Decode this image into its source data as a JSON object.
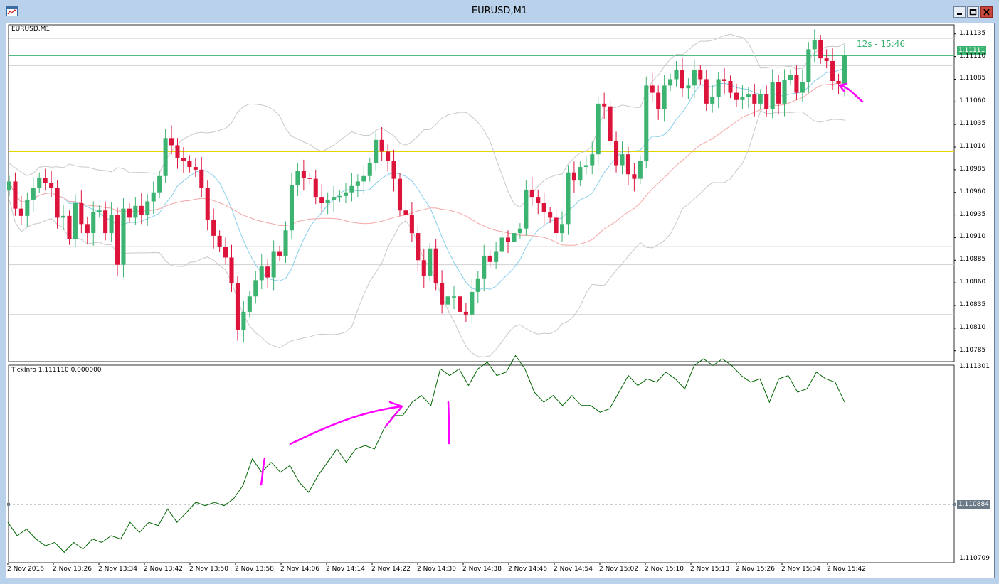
{
  "window": {
    "title": "EURUSD,M1",
    "icon": "chart-window-icon",
    "buttons": [
      "minimize-icon",
      "restore-icon",
      "close-icon"
    ]
  },
  "colors": {
    "bull": "#3cb371",
    "bear": "#dc143c",
    "ma_fast": "#87ceeb",
    "ma_slow": "#f4a6a6",
    "bands": "#c8c8c8",
    "level": "#e6d400",
    "ask_line": "#3cb371",
    "tick_line": "#006400",
    "annotation": "#ff00ff"
  },
  "main_pane": {
    "label": "EURUSD,M1",
    "timer": "12s - 15:46",
    "current_price": "1.11111",
    "price_labels": [
      "1.11135",
      "1.11110",
      "1.11085",
      "1.11060",
      "1.11035",
      "1.11010",
      "1.10985",
      "1.10960",
      "1.10935",
      "1.10910",
      "1.10885",
      "1.10860",
      "1.10835",
      "1.10810",
      "1.10785"
    ]
  },
  "sub_pane": {
    "label": "TickInfo 1.111110 0.000000",
    "price_labels": [
      "1.111301",
      "1.110884",
      "1.110709"
    ]
  },
  "time_labels": [
    "2 Nov 2016",
    "2 Nov 13:26",
    "2 Nov 13:34",
    "2 Nov 13:42",
    "2 Nov 13:50",
    "2 Nov 13:58",
    "2 Nov 14:06",
    "2 Nov 14:14",
    "2 Nov 14:22",
    "2 Nov 14:30",
    "2 Nov 14:38",
    "2 Nov 14:46",
    "2 Nov 14:54",
    "2 Nov 15:02",
    "2 Nov 15:10",
    "2 Nov 15:18",
    "2 Nov 15:26",
    "2 Nov 15:34",
    "2 Nov 15:42"
  ],
  "chart_data": [
    {
      "type": "candlestick",
      "title": "EURUSD,M1",
      "ylim": [
        1.10773,
        1.11145
      ],
      "levels": [
        1.11005,
        1.11111
      ],
      "closes": [
        1.10972,
        1.10942,
        1.10934,
        1.10952,
        1.10965,
        1.10976,
        1.1097,
        1.10965,
        1.10932,
        1.10934,
        1.10908,
        1.10948,
        1.10925,
        1.10915,
        1.10938,
        1.1094,
        1.10915,
        1.10935,
        1.1088,
        1.10942,
        1.10932,
        1.10945,
        1.10935,
        1.1095,
        1.1096,
        1.10978,
        1.1102,
        1.11012,
        1.10998,
        1.10995,
        1.10988,
        1.10985,
        1.10965,
        1.1093,
        1.10912,
        1.109,
        1.10888,
        1.1086,
        1.10808,
        1.10828,
        1.10845,
        1.10863,
        1.10878,
        1.10866,
        1.10895,
        1.1089,
        1.10918,
        1.10968,
        1.10984,
        1.10976,
        1.10975,
        1.10955,
        1.10948,
        1.10952,
        1.10955,
        1.10956,
        1.1096,
        1.10967,
        1.10972,
        1.10978,
        1.10992,
        1.11018,
        1.11005,
        1.10995,
        1.10975,
        1.1094,
        1.10935,
        1.10915,
        1.10885,
        1.10868,
        1.10898,
        1.1086,
        1.10836,
        1.10845,
        1.10845,
        1.10828,
        1.10825,
        1.1085,
        1.10865,
        1.1089,
        1.10883,
        1.10895,
        1.1091,
        1.10905,
        1.10915,
        1.1092,
        1.10963,
        1.10955,
        1.10948,
        1.10938,
        1.10932,
        1.10915,
        1.10925,
        1.10982,
        1.10973,
        1.10988,
        1.1099,
        1.11002,
        1.11058,
        1.11055,
        1.11017,
        1.1099,
        1.11002,
        1.1098,
        1.10975,
        1.10995,
        1.11078,
        1.1107,
        1.11052,
        1.11078,
        1.11085,
        1.11095,
        1.11075,
        1.11078,
        1.11095,
        1.11085,
        1.11058,
        1.11065,
        1.11085,
        1.11083,
        1.1107,
        1.11062,
        1.11065,
        1.11068,
        1.11058,
        1.11068,
        1.11052,
        1.11082,
        1.11058,
        1.11084,
        1.1109,
        1.1107,
        1.11082,
        1.11118,
        1.11128,
        1.11108,
        1.11105,
        1.11083,
        1.1108,
        1.11111
      ]
    },
    {
      "type": "line",
      "title": "TickInfo 1.111110 0.000000",
      "ylim": [
        1.110709,
        1.111301
      ],
      "levels": [
        1.110884
      ],
      "values": [
        1.11083,
        1.11079,
        1.11081,
        1.11078,
        1.11076,
        1.11077,
        1.11074,
        1.11077,
        1.11075,
        1.11078,
        1.11077,
        1.11079,
        1.11078,
        1.11083,
        1.1108,
        1.11083,
        1.11082,
        1.11087,
        1.11083,
        1.11086,
        1.11089,
        1.11088,
        1.11089,
        1.11088,
        1.1109,
        1.11094,
        1.11102,
        1.11098,
        1.11101,
        1.11098,
        1.111,
        1.11095,
        1.11092,
        1.11097,
        1.11101,
        1.11105,
        1.11101,
        1.11105,
        1.11106,
        1.11105,
        1.11111,
        1.11115,
        1.11115,
        1.11119,
        1.11121,
        1.11118,
        1.11129,
        1.11127,
        1.11129,
        1.11124,
        1.11129,
        1.11131,
        1.11127,
        1.11128,
        1.11133,
        1.11129,
        1.11122,
        1.11119,
        1.11121,
        1.11118,
        1.11121,
        1.11118,
        1.11118,
        1.11116,
        1.11117,
        1.11122,
        1.11127,
        1.11124,
        1.11126,
        1.11125,
        1.11128,
        1.11126,
        1.11123,
        1.1113,
        1.11132,
        1.1113,
        1.11132,
        1.1113,
        1.11127,
        1.11125,
        1.11126,
        1.11119,
        1.11126,
        1.11127,
        1.11122,
        1.11123,
        1.11128,
        1.11126,
        1.11125,
        1.11119
      ]
    }
  ]
}
